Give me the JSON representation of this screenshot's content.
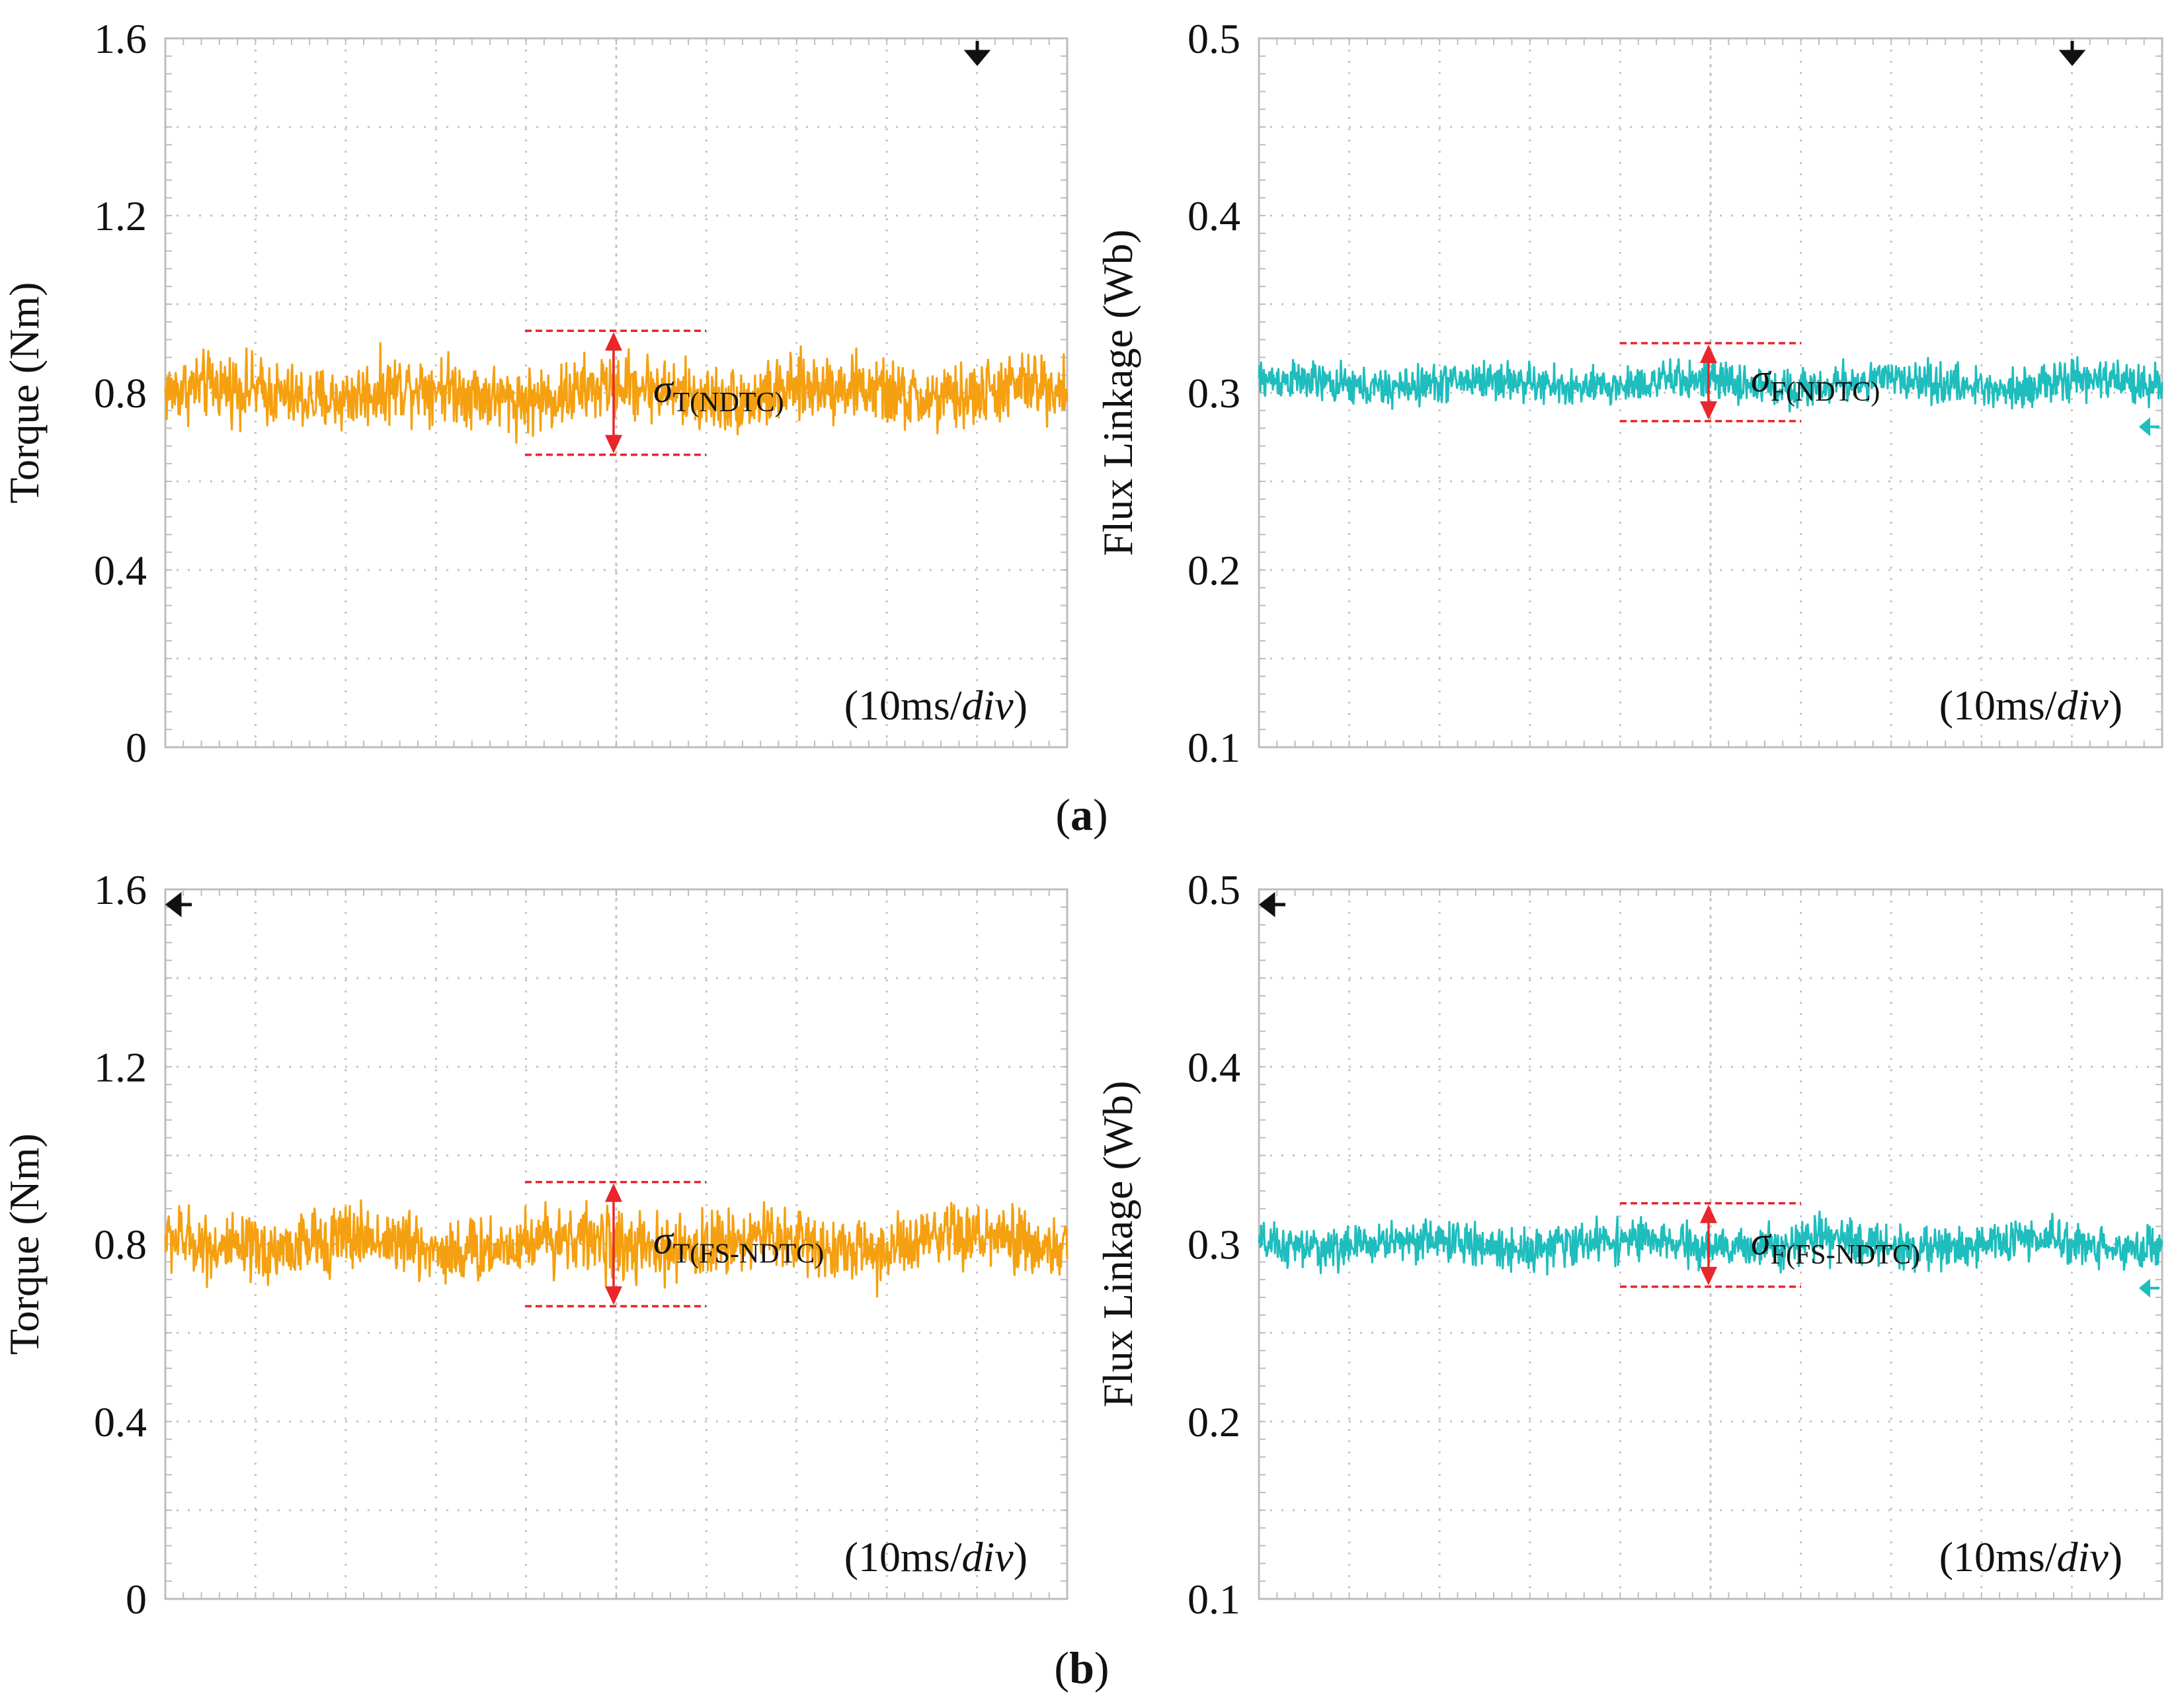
{
  "figure": {
    "panel_a_label": "a",
    "panel_b_label": "b"
  },
  "chart_data": [
    {
      "id": "a-torque",
      "type": "line",
      "panel": "a",
      "color": "#F5A010",
      "ylabel": "Torque (Nm)",
      "ylim": [
        0,
        1.6
      ],
      "yticks": [
        "0",
        "0.4",
        "0.8",
        "1.2",
        "1.6"
      ],
      "ytick_values": [
        0,
        0.4,
        0.8,
        1.2,
        1.6
      ],
      "time_div": {
        "prefix": "(10ms/",
        "italic": "div",
        "suffix": ")"
      },
      "series": [
        {
          "name": "Torque",
          "mean": 0.8,
          "amplitude": 0.11
        }
      ],
      "sigma_band": {
        "upper": 0.94,
        "lower": 0.66,
        "sym": "σ",
        "sub": "T(NDTC)"
      },
      "marker": "down-arrow"
    },
    {
      "id": "a-flux",
      "type": "line",
      "panel": "a",
      "color": "#1FBDBD",
      "ylabel": "Flux Linkage (Wb)",
      "ylim": [
        0.1,
        0.5
      ],
      "yticks": [
        "0.1",
        "0.2",
        "0.3",
        "0.4",
        "0.5"
      ],
      "ytick_values": [
        0.1,
        0.2,
        0.3,
        0.4,
        0.5
      ],
      "time_div": {
        "prefix": "(10ms/",
        "italic": "div",
        "suffix": ")"
      },
      "series": [
        {
          "name": "Flux Linkage",
          "mean": 0.305,
          "amplitude": 0.016
        }
      ],
      "sigma_band": {
        "upper": 0.328,
        "lower": 0.284,
        "sym": "σ",
        "sub": "F(NDTC)"
      },
      "marker": "down-arrow"
    },
    {
      "id": "b-torque",
      "type": "line",
      "panel": "b",
      "color": "#F5A010",
      "ylabel": "Torque (Nm)",
      "ylim": [
        0,
        1.6
      ],
      "yticks": [
        "0",
        "0.4",
        "0.8",
        "1.2",
        "1.6"
      ],
      "ytick_values": [
        0,
        0.4,
        0.8,
        1.2,
        1.6
      ],
      "time_div": {
        "prefix": "(10ms/",
        "italic": "div",
        "suffix": ")"
      },
      "series": [
        {
          "name": "Torque",
          "mean": 0.8,
          "amplitude": 0.11
        }
      ],
      "sigma_band": {
        "upper": 0.94,
        "lower": 0.66,
        "sym": "σ",
        "sub": "T(FS-NDTC)"
      },
      "marker": "left-arrow"
    },
    {
      "id": "b-flux",
      "type": "line",
      "panel": "b",
      "color": "#1FBDBD",
      "ylabel": "Flux Linkage (Wb)",
      "ylim": [
        0.1,
        0.5
      ],
      "yticks": [
        "0.1",
        "0.2",
        "0.3",
        "0.4",
        "0.5"
      ],
      "ytick_values": [
        0.1,
        0.2,
        0.3,
        0.4,
        0.5
      ],
      "time_div": {
        "prefix": "(10ms/",
        "italic": "div",
        "suffix": ")"
      },
      "series": [
        {
          "name": "Flux Linkage",
          "mean": 0.3,
          "amplitude": 0.017
        }
      ],
      "sigma_band": {
        "upper": 0.323,
        "lower": 0.276,
        "sym": "σ",
        "sub": "F(FS-NDTC)"
      },
      "marker": "left-arrow"
    }
  ]
}
